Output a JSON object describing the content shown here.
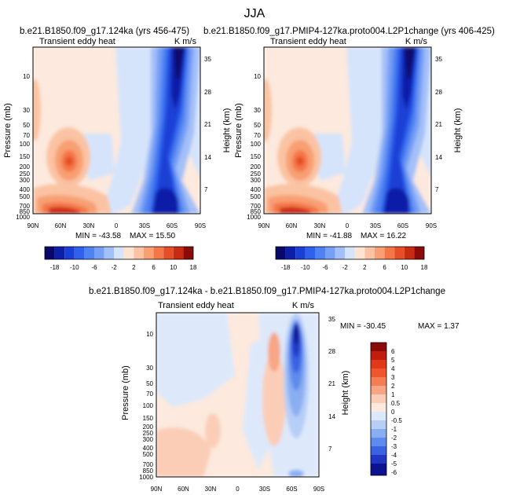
{
  "figure_title": "JJA",
  "chart_data": [
    {
      "type": "heatmap",
      "title": "b.e21.B1850.f09_g17.124ka (yrs 456-475)",
      "left_label": "Transient eddy heat",
      "units": "K m/s",
      "ylabel": "Pressure (mb)",
      "ylabel_right": "Height (km)",
      "x_ticks": [
        "90N",
        "60N",
        "30N",
        "0",
        "30S",
        "60S",
        "90S"
      ],
      "y_ticks": [
        "10",
        "30",
        "50",
        "70",
        "100",
        "150",
        "200",
        "250",
        "300",
        "400",
        "500",
        "700",
        "850",
        "1000"
      ],
      "y_right_ticks": [
        "35",
        "28",
        "21",
        "14",
        "7"
      ],
      "min": "-43.58",
      "max": "15.50",
      "colorbar_labels": [
        "-18",
        "-10",
        "-6",
        "-2",
        "2",
        "6",
        "10",
        "18"
      ]
    },
    {
      "type": "heatmap",
      "title": "b.e21.B1850.f09_g17.PMIP4-127ka.proto004.L2P1change (yrs 406-425)",
      "left_label": "Transient eddy heat",
      "units": "K m/s",
      "ylabel": "Pressure (mb)",
      "ylabel_right": "Height (km)",
      "x_ticks": [
        "90N",
        "60N",
        "30N",
        "0",
        "30S",
        "60S",
        "90S"
      ],
      "y_ticks": [
        "10",
        "30",
        "50",
        "70",
        "100",
        "150",
        "200",
        "250",
        "300",
        "400",
        "500",
        "700",
        "850",
        "1000"
      ],
      "y_right_ticks": [
        "35",
        "28",
        "21",
        "14",
        "7"
      ],
      "min": "-41.88",
      "max": "16.22",
      "colorbar_labels": [
        "-18",
        "-10",
        "-6",
        "-2",
        "2",
        "6",
        "10",
        "18"
      ]
    },
    {
      "type": "heatmap",
      "title": "b.e21.B1850.f09_g17.124ka - b.e21.B1850.f09_g17.PMIP4-127ka.proto004.L2P1change",
      "left_label": "Transient eddy heat",
      "units": "K m/s",
      "ylabel": "Pressure (mb)",
      "ylabel_right": "Height (km)",
      "x_ticks": [
        "90N",
        "60N",
        "30N",
        "0",
        "30S",
        "60S",
        "90S"
      ],
      "y_ticks": [
        "10",
        "30",
        "50",
        "70",
        "100",
        "150",
        "200",
        "250",
        "300",
        "400",
        "500",
        "700",
        "850",
        "1000"
      ],
      "y_right_ticks": [
        "35",
        "28",
        "21",
        "14",
        "7"
      ],
      "min": "-30.45",
      "max": "1.37",
      "colorbar_labels": [
        "6",
        "5",
        "4",
        "3",
        "2",
        "1",
        "0.5",
        "0",
        "-0.5",
        "-1",
        "-2",
        "-3",
        "-4",
        "-5",
        "-6"
      ]
    }
  ],
  "colors": {
    "blue_scale": [
      "#08086b",
      "#0d1ea8",
      "#1a3fd6",
      "#2f62ec",
      "#4f82f2",
      "#779ff5",
      "#a4c0f8",
      "#d6e4fb"
    ],
    "red_scale": [
      "#fde3d2",
      "#fbc3a3",
      "#f89f73",
      "#f47748",
      "#e64e25",
      "#c92a12",
      "#8b0a0a"
    ],
    "diff_scale": [
      "#8b0a0a",
      "#c01d0e",
      "#e0391a",
      "#f0562c",
      "#f47d55",
      "#f8a585",
      "#fbcdb6",
      "#fde9dd",
      "#dde9fb",
      "#b7cef7",
      "#8aaef2",
      "#5e8bee",
      "#3a62e3",
      "#2037c4",
      "#0d1390"
    ]
  }
}
